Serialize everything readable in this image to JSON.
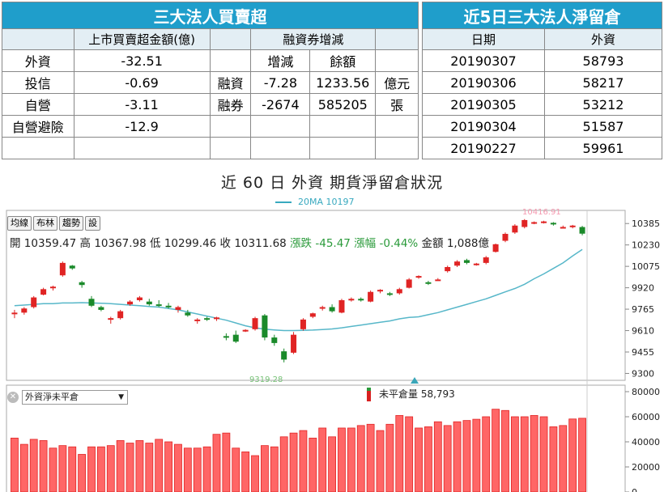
{
  "table1": {
    "title": "三大法人買賣超",
    "col_header": "上市買賣超金額(億)",
    "margin_header": "融資券增減",
    "margin_sub1": "增減",
    "margin_sub2": "餘額",
    "rows": [
      {
        "name": "外資",
        "value": "-32.51",
        "mlabel": "",
        "mchange": "",
        "mbalance": "",
        "unit": ""
      },
      {
        "name": "投信",
        "value": "-0.69",
        "mlabel": "融資",
        "mchange": "-7.28",
        "mbalance": "1233.56",
        "unit": "億元"
      },
      {
        "name": "自營",
        "value": "-3.11",
        "mlabel": "融券",
        "mchange": "-2674",
        "mbalance": "585205",
        "unit": "張"
      },
      {
        "name": "自營避險",
        "value": "-12.9",
        "mlabel": "",
        "mchange": "",
        "mbalance": "",
        "unit": ""
      },
      {
        "name": "",
        "value": "",
        "mlabel": "",
        "mchange": "",
        "mbalance": "",
        "unit": ""
      }
    ]
  },
  "table2": {
    "title": "近5日三大法人淨留倉",
    "col_date": "日期",
    "col_value": "外資",
    "rows": [
      {
        "date": "20190307",
        "value": "58793"
      },
      {
        "date": "20190306",
        "value": "58217"
      },
      {
        "date": "20190305",
        "value": "53212"
      },
      {
        "date": "20190304",
        "value": "51587"
      },
      {
        "date": "20190227",
        "value": "59961"
      }
    ]
  },
  "section_title": "近 60 日 外資 期貨淨留倉狀況",
  "legend_ma": "20MA 10197",
  "toolbar": [
    "均線",
    "布林",
    "趨勢",
    "設"
  ],
  "ohlc": {
    "open_label": "開",
    "open": "10359.47",
    "high_label": "高",
    "high": "10367.98",
    "low_label": "低",
    "low": "10299.46",
    "close_label": "收",
    "close": "10311.68",
    "change_label": "漲跌",
    "change": "-45.47",
    "pct_label": "漲幅",
    "pct": "-0.44%",
    "amount_label": "金額",
    "amount": "1,088億"
  },
  "selector": {
    "value": "外資淨未平倉"
  },
  "oi_legend": "未平倉量 58,793",
  "colors": {
    "up": "#e02424",
    "down": "#1a8a2a",
    "ma": "#57b7c9",
    "header": "#1f9ecb",
    "bar": "#ff6666"
  },
  "chart_data": [
    {
      "type": "candlestick",
      "title": "",
      "ylim": [
        9250,
        10480
      ],
      "yticks": [
        10385,
        10230,
        10075,
        9920,
        9765,
        9610,
        9455,
        9300
      ],
      "high_annotation": "10416.91",
      "low_annotation": "9319.28",
      "candles": [
        [
          9730,
          9760,
          9700,
          9740
        ],
        [
          9740,
          9780,
          9725,
          9770
        ],
        [
          9780,
          9860,
          9770,
          9850
        ],
        [
          9870,
          9920,
          9865,
          9910
        ],
        [
          9925,
          9935,
          9900,
          9928
        ],
        [
          10010,
          10110,
          10000,
          10100
        ],
        [
          10080,
          10085,
          10050,
          10060
        ],
        [
          9960,
          9970,
          9920,
          9940
        ],
        [
          9840,
          9860,
          9780,
          9790
        ],
        [
          9780,
          9790,
          9750,
          9760
        ],
        [
          9690,
          9710,
          9660,
          9700
        ],
        [
          9700,
          9760,
          9690,
          9750
        ],
        [
          9800,
          9830,
          9790,
          9820
        ],
        [
          9830,
          9860,
          9820,
          9850
        ],
        [
          9820,
          9840,
          9790,
          9800
        ],
        [
          9800,
          9830,
          9780,
          9790
        ],
        [
          9790,
          9810,
          9770,
          9780
        ],
        [
          9760,
          9790,
          9740,
          9780
        ],
        [
          9740,
          9760,
          9710,
          9720
        ],
        [
          9690,
          9700,
          9660,
          9690
        ],
        [
          9700,
          9710,
          9680,
          9690
        ],
        [
          9700,
          9710,
          9680,
          9705
        ],
        [
          9570,
          9590,
          9540,
          9560
        ],
        [
          9580,
          9610,
          9520,
          9530
        ],
        [
          9610,
          9620,
          9600,
          9615
        ],
        [
          9620,
          9710,
          9610,
          9700
        ],
        [
          9720,
          9730,
          9540,
          9560
        ],
        [
          9560,
          9580,
          9500,
          9520
        ],
        [
          9460,
          9480,
          9380,
          9400
        ],
        [
          9450,
          9600,
          9440,
          9580
        ],
        [
          9620,
          9700,
          9610,
          9690
        ],
        [
          9710,
          9740,
          9700,
          9735
        ],
        [
          9770,
          9790,
          9755,
          9780
        ],
        [
          9780,
          9800,
          9740,
          9750
        ],
        [
          9740,
          9840,
          9735,
          9830
        ],
        [
          9830,
          9850,
          9820,
          9840
        ],
        [
          9840,
          9850,
          9820,
          9830
        ],
        [
          9820,
          9900,
          9815,
          9890
        ],
        [
          9900,
          9910,
          9880,
          9905
        ],
        [
          9880,
          9890,
          9860,
          9875
        ],
        [
          9880,
          9920,
          9870,
          9910
        ],
        [
          9920,
          9990,
          9915,
          9980
        ],
        [
          10000,
          10010,
          9985,
          10005
        ],
        [
          9960,
          9970,
          9940,
          9955
        ],
        [
          9980,
          9990,
          9970,
          9980
        ],
        [
          10040,
          10080,
          10030,
          10070
        ],
        [
          10080,
          10120,
          10070,
          10110
        ],
        [
          10120,
          10130,
          10090,
          10100
        ],
        [
          10090,
          10100,
          10080,
          10095
        ],
        [
          10100,
          10150,
          10090,
          10140
        ],
        [
          10180,
          10240,
          10175,
          10235
        ],
        [
          10260,
          10320,
          10250,
          10310
        ],
        [
          10320,
          10380,
          10310,
          10370
        ],
        [
          10360,
          10417,
          10350,
          10410
        ],
        [
          10390,
          10400,
          10380,
          10395
        ],
        [
          10395,
          10405,
          10385,
          10400
        ],
        [
          10390,
          10395,
          10370,
          10380
        ],
        [
          10360,
          10370,
          10350,
          10360
        ],
        [
          10360,
          10375,
          10350,
          10370
        ],
        [
          10359.47,
          10367.98,
          10299.46,
          10311.68
        ]
      ],
      "ma20": [
        9790,
        9795,
        9800,
        9805,
        9805,
        9810,
        9810,
        9812,
        9810,
        9808,
        9805,
        9800,
        9795,
        9790,
        9785,
        9780,
        9770,
        9760,
        9745,
        9730,
        9715,
        9700,
        9685,
        9665,
        9645,
        9630,
        9620,
        9615,
        9610,
        9610,
        9612,
        9614,
        9618,
        9622,
        9630,
        9640,
        9650,
        9660,
        9670,
        9680,
        9695,
        9705,
        9710,
        9725,
        9740,
        9760,
        9780,
        9800,
        9820,
        9840,
        9865,
        9890,
        9915,
        9945,
        9985,
        10020,
        10060,
        10100,
        10150,
        10197
      ]
    },
    {
      "type": "bar",
      "title": "",
      "series_name": "外資淨未平倉",
      "ylim": [
        0,
        80000
      ],
      "yticks": [
        80000,
        60000,
        40000,
        20000,
        0
      ],
      "values": [
        43000,
        38000,
        42000,
        41000,
        35000,
        37000,
        36000,
        30000,
        36000,
        36000,
        37000,
        41000,
        39000,
        41000,
        39000,
        42000,
        40000,
        38000,
        35000,
        35000,
        36000,
        46000,
        47000,
        35000,
        32000,
        29000,
        37000,
        36000,
        44000,
        47000,
        49000,
        43000,
        51000,
        44000,
        51000,
        51000,
        53000,
        54000,
        49000,
        54000,
        61000,
        60000,
        51000,
        52000,
        56000,
        53000,
        56000,
        57000,
        58000,
        60000,
        66000,
        65000,
        60000,
        60000,
        61000,
        60000,
        52000,
        53000,
        58217,
        58793
      ]
    }
  ]
}
